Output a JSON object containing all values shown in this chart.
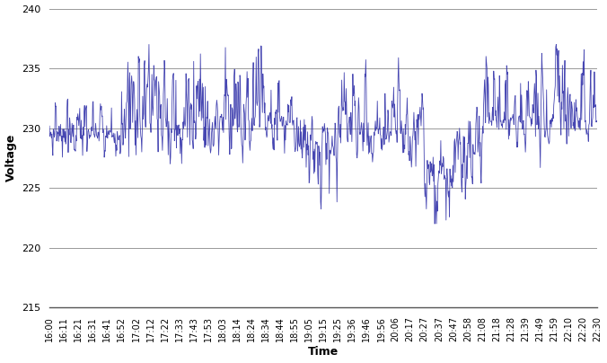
{
  "title": "",
  "xlabel": "Time",
  "ylabel": "Voltage",
  "ylim": [
    215,
    240
  ],
  "yticks": [
    215,
    220,
    225,
    230,
    235,
    240
  ],
  "line_color": "#3333aa",
  "bg_color": "#ffffff",
  "grid_color": "#999999",
  "x_tick_labels": [
    "16:00",
    "16:11",
    "16:21",
    "16:31",
    "16:41",
    "16:52",
    "17:02",
    "17:12",
    "17:22",
    "17:33",
    "17:43",
    "17:53",
    "18:03",
    "18:14",
    "18:24",
    "18:34",
    "18:44",
    "18:55",
    "19:05",
    "19:15",
    "19:25",
    "19:36",
    "19:46",
    "19:56",
    "20:06",
    "20:17",
    "20:27",
    "20:37",
    "20:47",
    "20:58",
    "21:08",
    "21:18",
    "21:28",
    "21:39",
    "21:49",
    "21:59",
    "22:10",
    "22:20",
    "22:30"
  ],
  "figsize": [
    6.76,
    4.04
  ],
  "dpi": 100
}
